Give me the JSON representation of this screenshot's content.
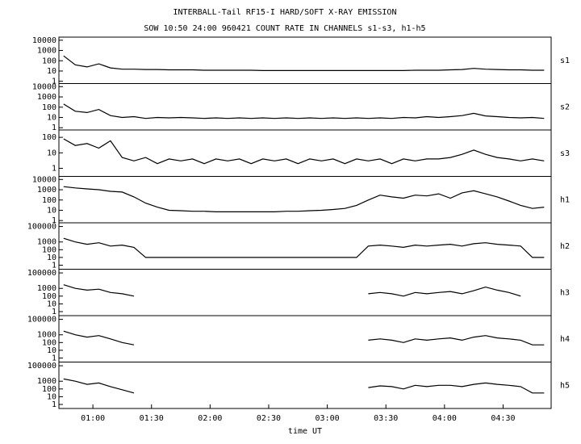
{
  "chart_data": [
    {
      "type": "line",
      "title": "INTERBALL-Tail RF15-I HARD/SOFT X-RAY EMISSION",
      "subtitle": "SOW 10:50 24:00 960421  COUNT RATE IN CHANNELS s1-s3, h1-h5",
      "label": "s1",
      "log_y": true,
      "color": "#000000",
      "x": [
        0.75,
        0.85,
        0.95,
        1.05,
        1.15,
        1.25,
        1.35,
        1.45,
        1.55,
        1.65,
        1.75,
        1.85,
        1.95,
        2.05,
        2.15,
        2.25,
        2.35,
        2.45,
        2.55,
        2.65,
        2.75,
        2.85,
        2.95,
        3.05,
        3.15,
        3.25,
        3.35,
        3.45,
        3.55,
        3.65,
        3.75,
        3.85,
        3.95,
        4.05,
        4.15,
        4.25,
        4.35,
        4.45,
        4.55,
        4.65,
        4.75,
        4.85
      ],
      "values": [
        300,
        40,
        25,
        50,
        20,
        15,
        15,
        14,
        14,
        13,
        13,
        13,
        12,
        12,
        12,
        12,
        12,
        11,
        11,
        11,
        11,
        11,
        11,
        11,
        11,
        11,
        11,
        11,
        11,
        11,
        12,
        12,
        12,
        13,
        14,
        18,
        15,
        14,
        13,
        13,
        12,
        12
      ],
      "xlim": [
        0.71,
        4.91
      ],
      "ylim": [
        0.6,
        20000
      ],
      "yticks": [
        10000,
        1000,
        100,
        10,
        1
      ]
    },
    {
      "type": "line",
      "label": "s2",
      "log_y": true,
      "color": "#000000",
      "x": [
        0.75,
        0.85,
        0.95,
        1.05,
        1.15,
        1.25,
        1.35,
        1.45,
        1.55,
        1.65,
        1.75,
        1.85,
        1.95,
        2.05,
        2.15,
        2.25,
        2.35,
        2.45,
        2.55,
        2.65,
        2.75,
        2.85,
        2.95,
        3.05,
        3.15,
        3.25,
        3.35,
        3.45,
        3.55,
        3.65,
        3.75,
        3.85,
        3.95,
        4.05,
        4.15,
        4.25,
        4.35,
        4.45,
        4.55,
        4.65,
        4.75,
        4.85
      ],
      "values": [
        200,
        40,
        30,
        60,
        15,
        10,
        12,
        8,
        10,
        9,
        10,
        9,
        8,
        9,
        8,
        9,
        8,
        9,
        8,
        9,
        8,
        9,
        8,
        9,
        8,
        9,
        8,
        9,
        8,
        10,
        9,
        12,
        10,
        12,
        15,
        25,
        14,
        12,
        10,
        9,
        10,
        8
      ],
      "xlim": [
        0.71,
        4.91
      ],
      "ylim": [
        0.6,
        20000
      ],
      "yticks": [
        10000,
        1000,
        100,
        10,
        1
      ]
    },
    {
      "type": "line",
      "label": "s3",
      "log_y": true,
      "color": "#000000",
      "x": [
        0.75,
        0.85,
        0.95,
        1.05,
        1.15,
        1.25,
        1.35,
        1.45,
        1.55,
        1.65,
        1.75,
        1.85,
        1.95,
        2.05,
        2.15,
        2.25,
        2.35,
        2.45,
        2.55,
        2.65,
        2.75,
        2.85,
        2.95,
        3.05,
        3.15,
        3.25,
        3.35,
        3.45,
        3.55,
        3.65,
        3.75,
        3.85,
        3.95,
        4.05,
        4.15,
        4.25,
        4.35,
        4.45,
        4.55,
        4.65,
        4.75,
        4.85
      ],
      "values": [
        80,
        30,
        40,
        20,
        60,
        5,
        3,
        5,
        2,
        4,
        3,
        4,
        2,
        4,
        3,
        4,
        2,
        4,
        3,
        4,
        2,
        4,
        3,
        4,
        2,
        4,
        3,
        4,
        2,
        4,
        3,
        4,
        4,
        5,
        8,
        15,
        8,
        5,
        4,
        3,
        4,
        3
      ],
      "xlim": [
        0.71,
        4.91
      ],
      "ylim": [
        0.3,
        300
      ],
      "yticks": [
        100,
        10,
        1
      ]
    },
    {
      "type": "line",
      "label": "h1",
      "log_y": true,
      "color": "#000000",
      "x": [
        0.75,
        0.85,
        0.95,
        1.05,
        1.15,
        1.25,
        1.35,
        1.45,
        1.55,
        1.65,
        1.75,
        1.85,
        1.95,
        2.05,
        2.15,
        2.25,
        2.35,
        2.45,
        2.55,
        2.65,
        2.75,
        2.85,
        2.95,
        3.05,
        3.15,
        3.25,
        3.35,
        3.45,
        3.55,
        3.65,
        3.75,
        3.85,
        3.95,
        4.05,
        4.15,
        4.25,
        4.35,
        4.45,
        4.55,
        4.65,
        4.75,
        4.85
      ],
      "values": [
        2000,
        1500,
        1200,
        1000,
        700,
        600,
        200,
        50,
        20,
        10,
        9,
        8,
        8,
        7,
        7,
        7,
        7,
        7,
        7,
        8,
        8,
        9,
        10,
        12,
        15,
        30,
        100,
        300,
        200,
        150,
        300,
        250,
        400,
        150,
        500,
        800,
        400,
        200,
        80,
        30,
        15,
        20
      ],
      "xlim": [
        0.71,
        4.91
      ],
      "ylim": [
        0.6,
        20000
      ],
      "yticks": [
        10000,
        1000,
        100,
        10,
        1
      ]
    },
    {
      "type": "line",
      "label": "h2",
      "log_y": true,
      "color": "#000000",
      "x": [
        0.75,
        0.85,
        0.95,
        1.05,
        1.15,
        1.25,
        1.35,
        1.45,
        1.55,
        1.65,
        1.75,
        1.85,
        1.95,
        2.05,
        2.15,
        2.25,
        2.35,
        2.45,
        2.55,
        2.65,
        2.75,
        2.85,
        2.95,
        3.05,
        3.15,
        3.25,
        3.35,
        3.45,
        3.55,
        3.65,
        3.75,
        3.85,
        3.95,
        4.05,
        4.15,
        4.25,
        4.35,
        4.45,
        4.55,
        4.65,
        4.75,
        4.85
      ],
      "values": [
        3000,
        1000,
        500,
        800,
        300,
        400,
        200,
        10,
        10,
        10,
        10,
        10,
        10,
        10,
        10,
        10,
        10,
        10,
        10,
        10,
        10,
        10,
        10,
        10,
        10,
        10,
        300,
        400,
        300,
        200,
        400,
        300,
        400,
        500,
        300,
        600,
        800,
        500,
        400,
        300,
        10,
        10
      ],
      "xlim": [
        0.71,
        4.91
      ],
      "ylim": [
        0.3,
        300000
      ],
      "yticks": [
        100000,
        1000,
        100,
        10,
        1
      ]
    },
    {
      "type": "line",
      "label": "h3",
      "log_y": true,
      "color": "#000000",
      "x": [
        0.75,
        0.85,
        0.95,
        1.05,
        1.15,
        1.25,
        1.35,
        1.45,
        1.55,
        1.65,
        1.75,
        1.85,
        1.95,
        2.05,
        2.15,
        2.25,
        2.35,
        2.45,
        2.55,
        2.65,
        2.75,
        2.85,
        2.95,
        3.05,
        3.15,
        3.25,
        3.35,
        3.45,
        3.55,
        3.65,
        3.75,
        3.85,
        3.95,
        4.05,
        4.15,
        4.25,
        4.35,
        4.45,
        4.55,
        4.65,
        4.75,
        4.85
      ],
      "values": [
        3000,
        1000,
        600,
        800,
        300,
        200,
        100,
        null,
        null,
        null,
        null,
        null,
        null,
        null,
        null,
        null,
        null,
        null,
        null,
        null,
        null,
        null,
        null,
        null,
        null,
        null,
        200,
        300,
        200,
        100,
        300,
        200,
        300,
        400,
        200,
        500,
        1500,
        600,
        300,
        100,
        null,
        null
      ],
      "xlim": [
        0.71,
        4.91
      ],
      "ylim": [
        0.3,
        300000
      ],
      "yticks": [
        100000,
        1000,
        100,
        10,
        1
      ]
    },
    {
      "type": "line",
      "label": "h4",
      "log_y": true,
      "color": "#000000",
      "x": [
        0.75,
        0.85,
        0.95,
        1.05,
        1.15,
        1.25,
        1.35,
        1.45,
        1.55,
        1.65,
        1.75,
        1.85,
        1.95,
        2.05,
        2.15,
        2.25,
        2.35,
        2.45,
        2.55,
        2.65,
        2.75,
        2.85,
        2.95,
        3.05,
        3.15,
        3.25,
        3.35,
        3.45,
        3.55,
        3.65,
        3.75,
        3.85,
        3.95,
        4.05,
        4.15,
        4.25,
        4.35,
        4.45,
        4.55,
        4.65,
        4.75,
        4.85
      ],
      "values": [
        3000,
        1000,
        500,
        800,
        300,
        100,
        50,
        null,
        null,
        null,
        null,
        null,
        null,
        null,
        null,
        null,
        null,
        null,
        null,
        null,
        null,
        null,
        null,
        null,
        null,
        null,
        200,
        300,
        200,
        100,
        300,
        200,
        300,
        400,
        200,
        500,
        800,
        400,
        300,
        200,
        50,
        50
      ],
      "xlim": [
        0.71,
        4.91
      ],
      "ylim": [
        0.3,
        300000
      ],
      "yticks": [
        100000,
        1000,
        100,
        10,
        1
      ]
    },
    {
      "type": "line",
      "label": "h5",
      "log_y": true,
      "color": "#000000",
      "xlabel": "time UT",
      "x": [
        0.75,
        0.85,
        0.95,
        1.05,
        1.15,
        1.25,
        1.35,
        1.45,
        1.55,
        1.65,
        1.75,
        1.85,
        1.95,
        2.05,
        2.15,
        2.25,
        2.35,
        2.45,
        2.55,
        2.65,
        2.75,
        2.85,
        2.95,
        3.05,
        3.15,
        3.25,
        3.35,
        3.45,
        3.55,
        3.65,
        3.75,
        3.85,
        3.95,
        4.05,
        4.15,
        4.25,
        4.35,
        4.45,
        4.55,
        4.65,
        4.75,
        4.85
      ],
      "values": [
        2000,
        1000,
        400,
        600,
        200,
        80,
        30,
        null,
        null,
        null,
        null,
        null,
        null,
        null,
        null,
        null,
        null,
        null,
        null,
        null,
        null,
        null,
        null,
        null,
        null,
        null,
        150,
        250,
        200,
        100,
        300,
        200,
        300,
        300,
        200,
        400,
        600,
        400,
        300,
        200,
        30,
        30
      ],
      "xlim": [
        0.71,
        4.91
      ],
      "ylim": [
        0.3,
        300000
      ],
      "yticks": [
        100000,
        1000,
        100,
        10,
        1
      ],
      "xticks": [
        {
          "value": 1,
          "label": "01:00"
        },
        {
          "value": 1.5,
          "label": "01:30"
        },
        {
          "value": 2,
          "label": "02:00"
        },
        {
          "value": 2.5,
          "label": "02:30"
        },
        {
          "value": 3,
          "label": "03:00"
        },
        {
          "value": 3.5,
          "label": "03:30"
        },
        {
          "value": 4,
          "label": "04:00"
        },
        {
          "value": 4.5,
          "label": "04:30"
        }
      ]
    }
  ]
}
